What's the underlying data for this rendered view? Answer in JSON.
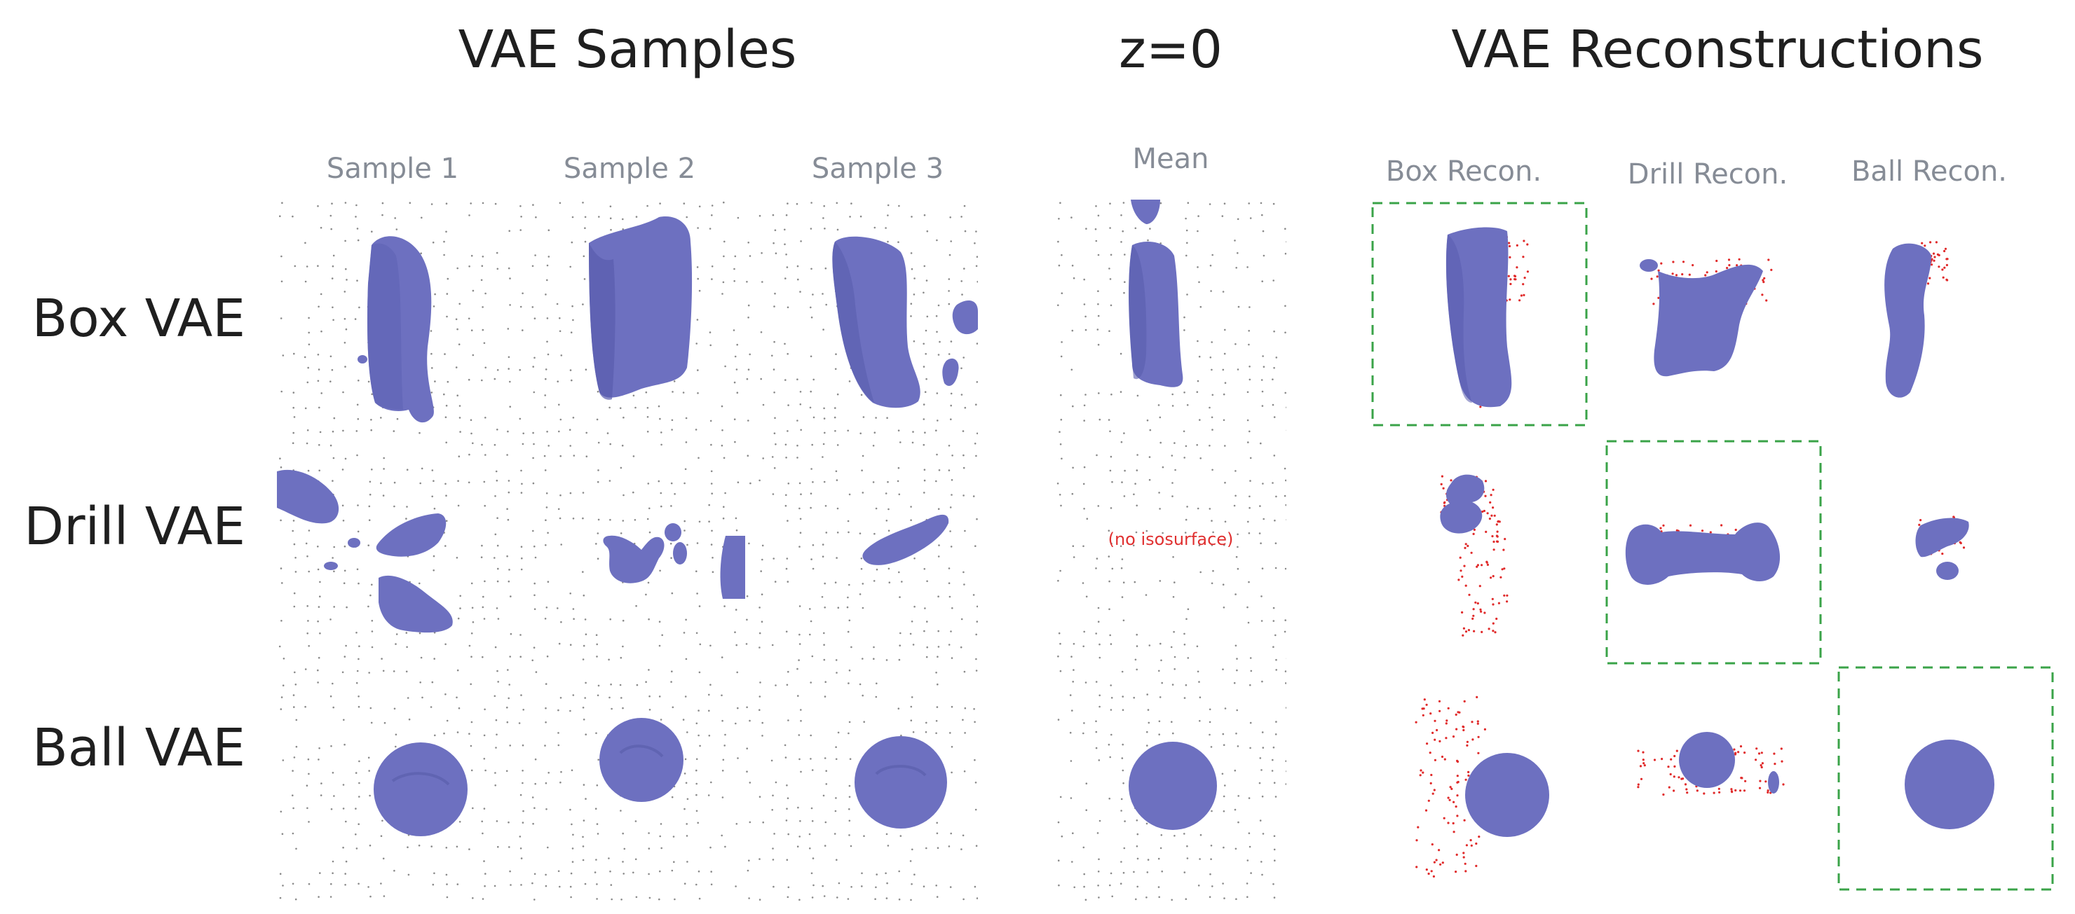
{
  "sections": {
    "samples_title": "VAE Samples",
    "mean_title": "z=0",
    "recon_title": "VAE Reconstructions"
  },
  "columns": {
    "samples": [
      "Sample 1",
      "Sample 2",
      "Sample 3"
    ],
    "mean": "Mean",
    "recon": [
      "Box Recon.",
      "Drill Recon.",
      "Ball Recon."
    ]
  },
  "rows": [
    "Box VAE",
    "Drill VAE",
    "Ball VAE"
  ],
  "mean_drill_note": "(no isosurface)",
  "colors": {
    "surface": "#6d70c0",
    "surface_shade": "#5558a8",
    "points_recon": "#e02a2a",
    "points_grid": "#2a2a2a",
    "highlight_box": "#3aa348"
  },
  "highlighted_cells": [
    {
      "row": "Box VAE",
      "column": "Box Recon."
    },
    {
      "row": "Drill VAE",
      "column": "Drill Recon."
    },
    {
      "row": "Ball VAE",
      "column": "Ball Recon."
    }
  ]
}
